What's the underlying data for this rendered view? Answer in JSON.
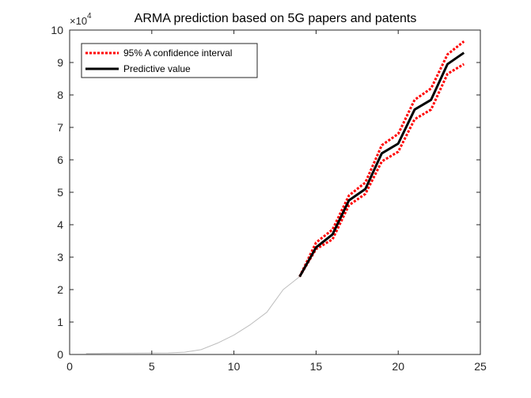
{
  "chart_data": {
    "type": "line",
    "title": "ARMA prediction based on 5G papers and patents",
    "xlabel": "",
    "ylabel": "",
    "xlim": [
      0,
      25
    ],
    "ylim": [
      0,
      100000
    ],
    "xticks": [
      0,
      5,
      10,
      15,
      20,
      25
    ],
    "yticks": [
      0,
      10000,
      20000,
      30000,
      40000,
      50000,
      60000,
      70000,
      80000,
      90000,
      100000
    ],
    "ytick_labels": [
      "0",
      "1",
      "2",
      "3",
      "4",
      "5",
      "6",
      "7",
      "8",
      "9",
      "10"
    ],
    "y_multiplier": {
      "base": "×10",
      "exponent": "4"
    },
    "grid": false,
    "legend": {
      "placement": "top-left",
      "boxed": true
    },
    "series": [
      {
        "x": [
          1,
          2,
          3,
          4,
          5,
          6,
          7,
          8,
          9,
          10,
          11,
          12,
          13,
          14
        ],
        "values": [
          300,
          350,
          400,
          420,
          450,
          500,
          700,
          1500,
          3500,
          6000,
          9200,
          13000,
          20000,
          24000
        ],
        "color": "#bdbdbd",
        "style": "solid",
        "in_legend": false
      },
      {
        "name": "95% A confidence interval",
        "x": [
          14,
          15,
          16,
          17,
          18,
          19,
          20,
          21,
          22,
          23,
          24
        ],
        "values": [
          24000,
          34500,
          38500,
          49000,
          53000,
          64500,
          68000,
          78500,
          82000,
          92500,
          96500
        ],
        "color": "#ff0000",
        "style": "dotted",
        "in_legend": true
      },
      {
        "x": [
          14,
          15,
          16,
          17,
          18,
          19,
          20,
          21,
          22,
          23,
          24
        ],
        "values": [
          24000,
          32500,
          35500,
          46000,
          49500,
          59500,
          62500,
          72500,
          75500,
          86500,
          89500
        ],
        "color": "#ff0000",
        "style": "dotted",
        "in_legend": false
      },
      {
        "name": "Predictive value",
        "x": [
          14,
          15,
          16,
          17,
          18,
          19,
          20,
          21,
          22,
          23,
          24
        ],
        "values": [
          24000,
          33000,
          37000,
          47500,
          51000,
          62000,
          65000,
          75500,
          78500,
          89500,
          93000
        ],
        "color": "#000000",
        "style": "solid",
        "in_legend": true
      }
    ]
  }
}
